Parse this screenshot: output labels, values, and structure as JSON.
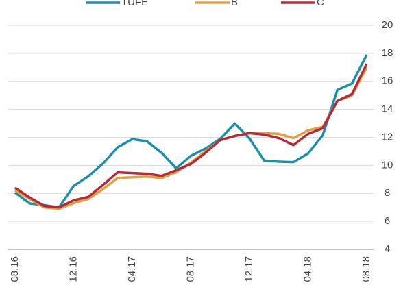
{
  "chart_data": {
    "type": "line",
    "categories": [
      "08.16",
      null,
      null,
      null,
      "12.16",
      null,
      null,
      null,
      "04.17",
      null,
      null,
      null,
      "08.17",
      null,
      null,
      null,
      "12.17",
      null,
      null,
      null,
      "04.18",
      null,
      null,
      null,
      "08.18"
    ],
    "series": [
      {
        "name": "TUFE",
        "color": "#1a8fa8",
        "values": [
          8.05,
          7.28,
          7.16,
          7.0,
          8.53,
          9.22,
          10.13,
          11.29,
          11.87,
          11.72,
          10.9,
          9.79,
          10.68,
          11.2,
          11.9,
          12.98,
          11.92,
          10.35,
          10.26,
          10.23,
          10.85,
          12.15,
          15.39,
          15.85,
          17.9
        ]
      },
      {
        "name": "B",
        "color": "#e0a040",
        "values": [
          8.2,
          7.6,
          7.0,
          6.9,
          7.3,
          7.6,
          8.3,
          9.1,
          9.15,
          9.2,
          9.1,
          9.5,
          10.2,
          11.0,
          11.8,
          12.1,
          12.3,
          12.3,
          12.25,
          11.95,
          12.5,
          12.75,
          14.6,
          15.0,
          17.0
        ]
      },
      {
        "name": "C",
        "color": "#b52a3a",
        "values": [
          8.4,
          7.7,
          7.1,
          7.0,
          7.5,
          7.75,
          8.6,
          9.5,
          9.45,
          9.4,
          9.25,
          9.65,
          10.1,
          10.9,
          11.8,
          12.1,
          12.3,
          12.2,
          11.95,
          11.45,
          12.25,
          12.65,
          14.6,
          15.1,
          17.25
        ]
      }
    ],
    "ylim": [
      4,
      20
    ],
    "yticks": [
      4,
      6,
      8,
      10,
      12,
      14,
      16,
      18,
      20
    ],
    "grid": true,
    "legend": "top"
  }
}
